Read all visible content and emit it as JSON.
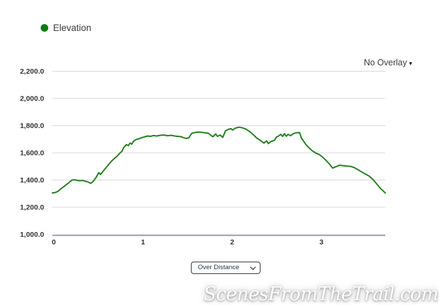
{
  "legend": {
    "items": [
      {
        "label": "Elevation",
        "color": "#0d7c11"
      }
    ]
  },
  "overlay_dropdown": {
    "label": "No Overlay"
  },
  "mode_select": {
    "value": "Over Distance"
  },
  "watermark": {
    "text": "ScenesFromTheTrail.com"
  },
  "icons": {
    "caret_down": "▾"
  },
  "colors": {
    "line": "#23801f",
    "legend_dot": "#0d7c11",
    "grid": "#d8d8d8",
    "bottom_axis": "#9fafc4",
    "tick_text": "#333333"
  },
  "chart_data": {
    "type": "line",
    "title": "",
    "xlabel": "",
    "ylabel": "",
    "grid": true,
    "legend_position": "top-left",
    "xlim": [
      0,
      3.73
    ],
    "ylim": [
      1000,
      2200
    ],
    "x_ticks": [
      {
        "value": 0,
        "label": "0"
      },
      {
        "value": 1,
        "label": "1"
      },
      {
        "value": 2,
        "label": "2"
      },
      {
        "value": 3,
        "label": "3"
      }
    ],
    "y_ticks": [
      {
        "value": 2200,
        "label": "2,200.0"
      },
      {
        "value": 2000,
        "label": "2,000.0"
      },
      {
        "value": 1800,
        "label": "1,800.0"
      },
      {
        "value": 1600,
        "label": "1,600.0"
      },
      {
        "value": 1400,
        "label": "1,400.0"
      },
      {
        "value": 1200,
        "label": "1,200.0"
      },
      {
        "value": 1000,
        "label": "1,000.0"
      }
    ],
    "series": [
      {
        "name": "Elevation",
        "color": "#23801f",
        "points": [
          [
            0.0,
            1305
          ],
          [
            0.03,
            1308
          ],
          [
            0.06,
            1316
          ],
          [
            0.1,
            1338
          ],
          [
            0.14,
            1357
          ],
          [
            0.18,
            1378
          ],
          [
            0.22,
            1400
          ],
          [
            0.25,
            1402
          ],
          [
            0.28,
            1397
          ],
          [
            0.31,
            1395
          ],
          [
            0.34,
            1397
          ],
          [
            0.37,
            1391
          ],
          [
            0.4,
            1386
          ],
          [
            0.43,
            1375
          ],
          [
            0.46,
            1392
          ],
          [
            0.49,
            1420
          ],
          [
            0.52,
            1455
          ],
          [
            0.54,
            1441
          ],
          [
            0.57,
            1466
          ],
          [
            0.6,
            1490
          ],
          [
            0.63,
            1514
          ],
          [
            0.66,
            1537
          ],
          [
            0.69,
            1556
          ],
          [
            0.72,
            1572
          ],
          [
            0.75,
            1594
          ],
          [
            0.78,
            1612
          ],
          [
            0.8,
            1640
          ],
          [
            0.83,
            1661
          ],
          [
            0.85,
            1653
          ],
          [
            0.87,
            1672
          ],
          [
            0.89,
            1664
          ],
          [
            0.91,
            1686
          ],
          [
            0.94,
            1698
          ],
          [
            0.97,
            1704
          ],
          [
            1.0,
            1711
          ],
          [
            1.04,
            1719
          ],
          [
            1.07,
            1724
          ],
          [
            1.1,
            1721
          ],
          [
            1.13,
            1727
          ],
          [
            1.17,
            1724
          ],
          [
            1.21,
            1729
          ],
          [
            1.25,
            1731
          ],
          [
            1.29,
            1726
          ],
          [
            1.33,
            1729
          ],
          [
            1.37,
            1724
          ],
          [
            1.41,
            1721
          ],
          [
            1.44,
            1719
          ],
          [
            1.47,
            1712
          ],
          [
            1.5,
            1706
          ],
          [
            1.53,
            1711
          ],
          [
            1.56,
            1743
          ],
          [
            1.6,
            1750
          ],
          [
            1.64,
            1753
          ],
          [
            1.68,
            1750
          ],
          [
            1.72,
            1747
          ],
          [
            1.75,
            1744
          ],
          [
            1.78,
            1726
          ],
          [
            1.8,
            1719
          ],
          [
            1.83,
            1739
          ],
          [
            1.85,
            1721
          ],
          [
            1.88,
            1731
          ],
          [
            1.91,
            1714
          ],
          [
            1.94,
            1762
          ],
          [
            1.97,
            1772
          ],
          [
            2.0,
            1778
          ],
          [
            2.02,
            1768
          ],
          [
            2.05,
            1782
          ],
          [
            2.09,
            1789
          ],
          [
            2.13,
            1784
          ],
          [
            2.17,
            1774
          ],
          [
            2.21,
            1757
          ],
          [
            2.25,
            1734
          ],
          [
            2.29,
            1709
          ],
          [
            2.33,
            1692
          ],
          [
            2.37,
            1672
          ],
          [
            2.4,
            1688
          ],
          [
            2.42,
            1668
          ],
          [
            2.45,
            1684
          ],
          [
            2.49,
            1692
          ],
          [
            2.51,
            1716
          ],
          [
            2.53,
            1722
          ],
          [
            2.56,
            1736
          ],
          [
            2.58,
            1721
          ],
          [
            2.6,
            1741
          ],
          [
            2.62,
            1722
          ],
          [
            2.64,
            1736
          ],
          [
            2.67,
            1726
          ],
          [
            2.7,
            1741
          ],
          [
            2.73,
            1748
          ],
          [
            2.77,
            1749
          ],
          [
            2.79,
            1710
          ],
          [
            2.81,
            1690
          ],
          [
            2.84,
            1662
          ],
          [
            2.87,
            1641
          ],
          [
            2.91,
            1616
          ],
          [
            2.95,
            1599
          ],
          [
            2.99,
            1588
          ],
          [
            3.03,
            1567
          ],
          [
            3.07,
            1543
          ],
          [
            3.11,
            1514
          ],
          [
            3.14,
            1488
          ],
          [
            3.18,
            1499
          ],
          [
            3.22,
            1509
          ],
          [
            3.26,
            1506
          ],
          [
            3.3,
            1503
          ],
          [
            3.34,
            1501
          ],
          [
            3.38,
            1492
          ],
          [
            3.42,
            1478
          ],
          [
            3.46,
            1462
          ],
          [
            3.5,
            1447
          ],
          [
            3.55,
            1429
          ],
          [
            3.6,
            1399
          ],
          [
            3.64,
            1367
          ],
          [
            3.68,
            1336
          ],
          [
            3.71,
            1318
          ],
          [
            3.73,
            1305
          ]
        ]
      }
    ]
  }
}
